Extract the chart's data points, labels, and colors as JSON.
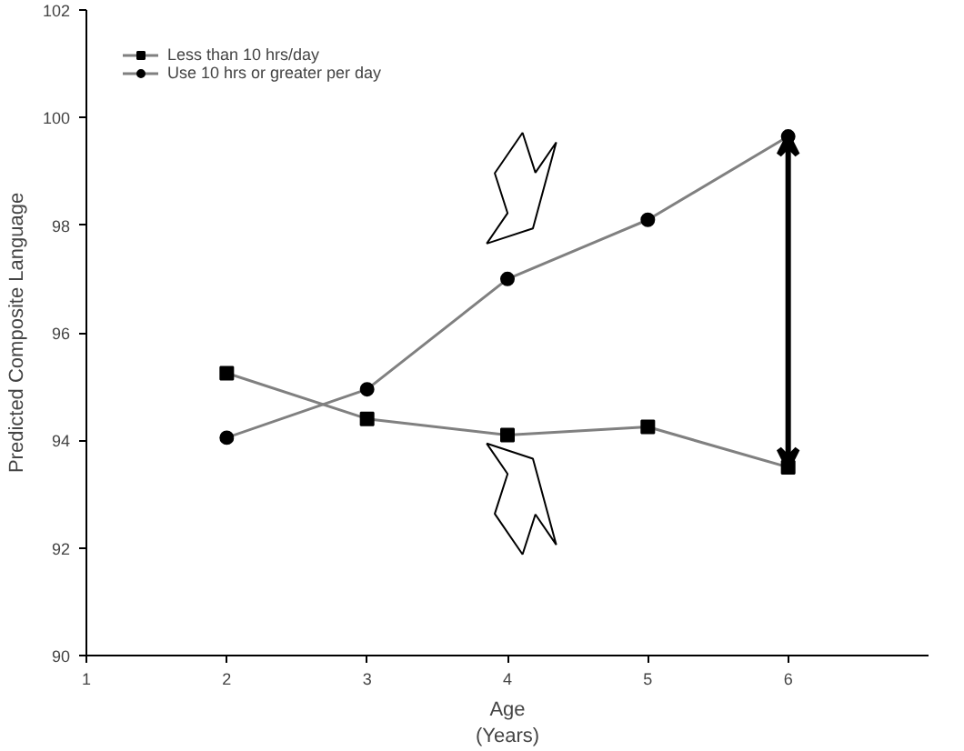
{
  "chart_data": {
    "type": "line",
    "xlabel": "Age\n(Years)",
    "ylabel": "Predicted Composite Language",
    "x": [
      2,
      3,
      4,
      5,
      6
    ],
    "series": [
      {
        "name": "Less than 10 hrs/day",
        "color": "#000000",
        "marker": "square",
        "values": [
          95.25,
          94.4,
          94.1,
          94.25,
          93.5
        ]
      },
      {
        "name": "Use 10 hrs or greater per day",
        "color": "#000000",
        "marker": "circle",
        "values": [
          94.05,
          94.95,
          97.0,
          98.1,
          99.65
        ]
      }
    ],
    "xlim": [
      1,
      7
    ],
    "xticks": [
      1,
      2,
      3,
      4,
      5,
      6
    ],
    "ylim": [
      90,
      102
    ],
    "yticks": [
      90,
      92,
      94,
      96,
      98,
      100,
      102
    ],
    "legend": "top left",
    "grid": false
  }
}
